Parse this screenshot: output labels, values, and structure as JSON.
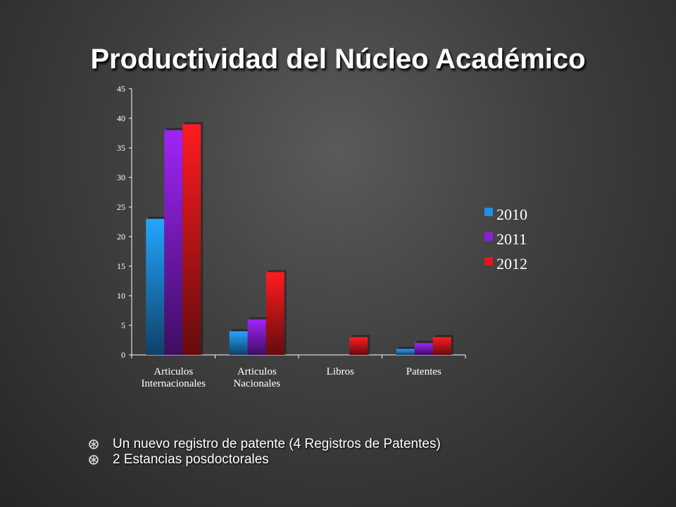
{
  "slide": {
    "title": "Productividad del Núcleo Académico"
  },
  "chart_data": {
    "type": "bar",
    "categories": [
      "Articulos\nInternacionales",
      "Articulos\nNacionales",
      "Libros",
      "Patentes"
    ],
    "series": [
      {
        "name": "2010",
        "values": [
          23,
          4,
          0,
          1
        ],
        "color": "#1e90e8"
      },
      {
        "name": "2011",
        "values": [
          38,
          6,
          0,
          2
        ],
        "color": "#8a1fd8"
      },
      {
        "name": "2012",
        "values": [
          39,
          14,
          3,
          3
        ],
        "color": "#e0181c"
      }
    ],
    "ylim": [
      0,
      45
    ],
    "yticks": [
      0,
      5,
      10,
      15,
      20,
      25,
      30,
      35,
      40,
      45
    ],
    "legend_position": "right",
    "grid": false
  },
  "notes": {
    "items": [
      "Un nuevo registro de patente (4 Registros de Patentes)",
      "2  Estancias posdoctorales"
    ]
  }
}
